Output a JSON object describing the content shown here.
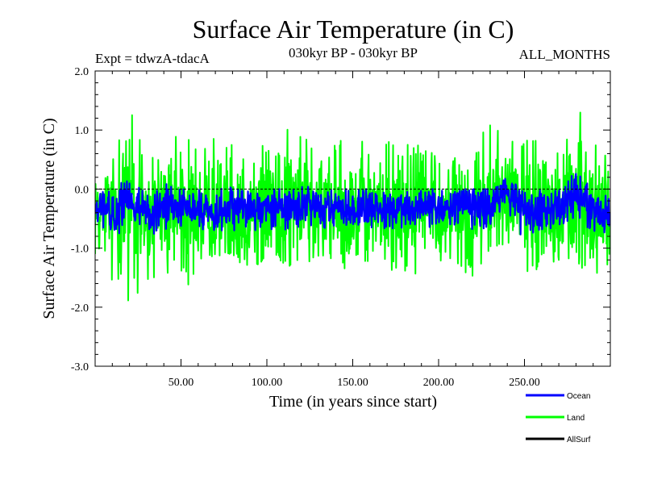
{
  "chart_data": {
    "type": "line",
    "title": "Surface Air Temperature (in C)",
    "subtitle_left": "Expt = tdwzA-tdacA",
    "subtitle_center": "030kyr BP - 030kyr BP",
    "subtitle_right": "ALL_MONTHS",
    "xlabel": "Time (in years since start)",
    "ylabel": "Surface Air Temperature (in C)",
    "xlim": [
      0,
      300
    ],
    "ylim": [
      -3.0,
      2.0
    ],
    "x_ticks": [
      50,
      100,
      150,
      200,
      250
    ],
    "x_tick_labels": [
      "50.00",
      "100.00",
      "150.00",
      "200.00",
      "250.00"
    ],
    "y_ticks": [
      -3,
      -2,
      -1,
      0,
      1,
      2
    ],
    "y_tick_labels": [
      "-3.0",
      "-2.0",
      "-1.0",
      "0.0",
      "1.0",
      "2.0"
    ],
    "reference_line": 0.0,
    "legend_placement": "bottom-right",
    "series": [
      {
        "name": "Land",
        "color": "#00ff00",
        "x": [
          0,
          10,
          20,
          30,
          40,
          50,
          60,
          70,
          80,
          90,
          100,
          110,
          120,
          130,
          140,
          150,
          160,
          170,
          180,
          190,
          200,
          210,
          220,
          230,
          240,
          250,
          260,
          270,
          280,
          290,
          300
        ],
        "mean": [
          -0.35,
          -0.4,
          -0.3,
          -0.45,
          -0.25,
          -0.3,
          -0.35,
          -0.45,
          -0.3,
          -0.4,
          -0.25,
          -0.35,
          -0.3,
          -0.4,
          -0.3,
          -0.35,
          -0.3,
          -0.4,
          -0.35,
          -0.3,
          -0.35,
          -0.25,
          -0.3,
          -0.4,
          0.0,
          -0.4,
          -0.35,
          -0.3,
          -0.1,
          -0.45,
          -0.4
        ],
        "max": [
          0.5,
          0.5,
          1.4,
          0.6,
          0.8,
          1.2,
          0.7,
          0.9,
          0.8,
          0.9,
          0.7,
          1.1,
          0.9,
          0.8,
          0.8,
          0.9,
          0.8,
          0.8,
          0.9,
          0.7,
          0.7,
          0.6,
          0.8,
          1.2,
          0.9,
          0.8,
          1.0,
          0.9,
          1.5,
          0.9,
          0.8
        ],
        "min": [
          -1.1,
          -1.6,
          -2.05,
          -1.7,
          -1.3,
          -1.95,
          -1.3,
          -1.1,
          -1.2,
          -1.3,
          -1.4,
          -1.3,
          -1.3,
          -1.3,
          -1.2,
          -1.85,
          -1.3,
          -1.3,
          -1.85,
          -1.6,
          -1.3,
          -1.3,
          -1.5,
          -1.0,
          -1.0,
          -1.5,
          -1.3,
          -1.2,
          -1.3,
          -1.4,
          -1.55
        ]
      },
      {
        "name": "Ocean",
        "color": "#0000ff",
        "x": [
          0,
          10,
          20,
          30,
          40,
          50,
          60,
          70,
          80,
          90,
          100,
          110,
          120,
          130,
          140,
          150,
          160,
          170,
          180,
          190,
          200,
          210,
          220,
          230,
          240,
          250,
          260,
          270,
          280,
          290,
          300
        ],
        "mean": [
          -0.35,
          -0.38,
          -0.25,
          -0.45,
          -0.3,
          -0.3,
          -0.35,
          -0.42,
          -0.28,
          -0.38,
          -0.3,
          -0.33,
          -0.3,
          -0.38,
          -0.3,
          -0.33,
          -0.3,
          -0.38,
          -0.33,
          -0.3,
          -0.33,
          -0.28,
          -0.3,
          -0.35,
          0.0,
          -0.42,
          -0.35,
          -0.3,
          -0.1,
          -0.45,
          -0.38
        ],
        "max": [
          0.0,
          0.0,
          0.2,
          -0.1,
          0.1,
          0.0,
          0.0,
          0.0,
          0.2,
          0.0,
          0.0,
          0.0,
          0.1,
          0.0,
          0.0,
          0.0,
          0.0,
          0.0,
          0.0,
          0.0,
          0.0,
          0.0,
          0.0,
          0.0,
          0.2,
          -0.05,
          0.0,
          0.0,
          0.3,
          0.0,
          0.0
        ],
        "min": [
          -0.7,
          -0.8,
          -0.8,
          -0.8,
          -0.7,
          -0.7,
          -0.7,
          -0.7,
          -0.7,
          -0.7,
          -0.7,
          -0.7,
          -0.7,
          -0.7,
          -0.7,
          -0.7,
          -0.7,
          -0.7,
          -0.7,
          -0.7,
          -0.7,
          -0.7,
          -1.0,
          -0.7,
          -0.4,
          -0.9,
          -0.7,
          -0.7,
          -0.5,
          -0.8,
          -0.7
        ]
      },
      {
        "name": "AllSurf",
        "color": "#000000",
        "x": [],
        "mean": [],
        "max": [],
        "min": []
      }
    ]
  }
}
